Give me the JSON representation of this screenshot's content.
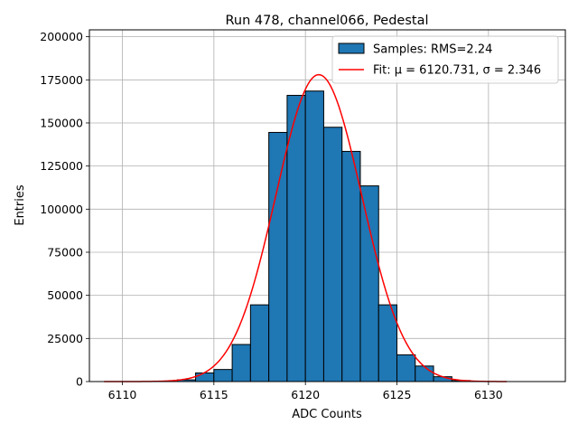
{
  "chart_data": {
    "type": "bar",
    "title": "Run 478, channel066, Pedestal",
    "xlabel": "ADC Counts",
    "ylabel": "Entries",
    "xlim": [
      6108.2,
      6134.2
    ],
    "ylim": [
      0,
      204000
    ],
    "xticks": [
      6110,
      6115,
      6120,
      6125,
      6130
    ],
    "yticks": [
      0,
      25000,
      50000,
      75000,
      100000,
      125000,
      150000,
      175000,
      200000
    ],
    "grid": true,
    "legend_position": "top-right",
    "bar_color": "#1f77b4",
    "fit_color": "#ff0000",
    "legend": {
      "samples_label": "Samples: RMS=2.24",
      "fit_label": "Fit: μ = 6120.731, σ = 2.346"
    },
    "histogram": {
      "bin_width": 1,
      "bins": [
        {
          "left": 6113,
          "value": 1000
        },
        {
          "left": 6114,
          "value": 5000
        },
        {
          "left": 6115,
          "value": 7000
        },
        {
          "left": 6116,
          "value": 21500
        },
        {
          "left": 6117,
          "value": 44500
        },
        {
          "left": 6118,
          "value": 144500
        },
        {
          "left": 6119,
          "value": 166000
        },
        {
          "left": 6120,
          "value": 168500
        },
        {
          "left": 6121,
          "value": 147500
        },
        {
          "left": 6122,
          "value": 133500
        },
        {
          "left": 6123,
          "value": 113500
        },
        {
          "left": 6124,
          "value": 44500
        },
        {
          "left": 6125,
          "value": 15500
        },
        {
          "left": 6126,
          "value": 9000
        },
        {
          "left": 6127,
          "value": 2800
        },
        {
          "left": 6128,
          "value": 600
        }
      ]
    },
    "fit": {
      "mu": 6120.731,
      "sigma": 2.346,
      "amplitude": 178000,
      "x_range": [
        6109,
        6131
      ]
    }
  }
}
